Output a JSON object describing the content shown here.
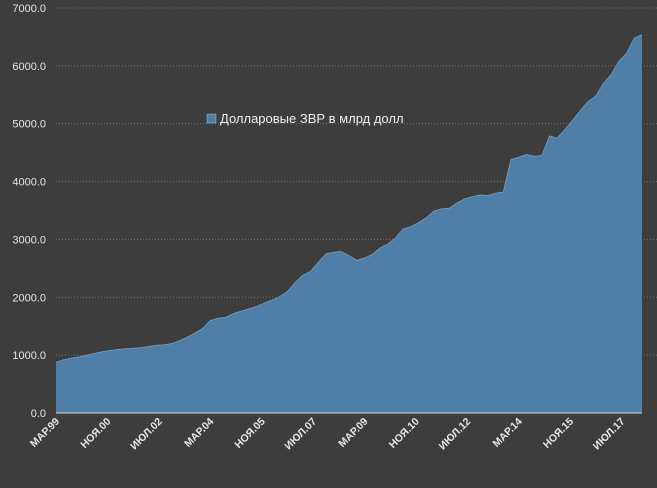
{
  "chart_data": {
    "type": "area",
    "title": "",
    "xlabel": "",
    "ylabel": "",
    "ylim": [
      0,
      7000
    ],
    "y_ticks": [
      "0.0",
      "1000.0",
      "2000.0",
      "3000.0",
      "4000.0",
      "5000.0",
      "6000.0",
      "7000.0"
    ],
    "x_tick_labels": [
      "МАР.99",
      "НОЯ.00",
      "ИЮЛ.02",
      "МАР.04",
      "НОЯ.05",
      "ИЮЛ.07",
      "МАР.09",
      "НОЯ.10",
      "ИЮЛ.12",
      "МАР.14",
      "НОЯ.15",
      "ИЮЛ.17"
    ],
    "grid": "horizontal dotted",
    "legend_position": "top-center",
    "colors": {
      "background": "#3d3d3d",
      "area_fill": "#4f7ea6",
      "area_line": "#9cc3e0",
      "grid": "#707070",
      "text": "#e6e6e6"
    },
    "series": [
      {
        "name": "Долларовые ЗВР в млрд долл",
        "x": [
          "1999-03",
          "1999-06",
          "1999-09",
          "1999-12",
          "2000-03",
          "2000-06",
          "2000-09",
          "2000-12",
          "2001-03",
          "2001-06",
          "2001-09",
          "2001-12",
          "2002-03",
          "2002-06",
          "2002-09",
          "2002-12",
          "2003-03",
          "2003-06",
          "2003-09",
          "2003-12",
          "2004-03",
          "2004-06",
          "2004-09",
          "2004-12",
          "2005-03",
          "2005-06",
          "2005-09",
          "2005-12",
          "2006-03",
          "2006-06",
          "2006-09",
          "2006-12",
          "2007-03",
          "2007-06",
          "2007-09",
          "2007-12",
          "2008-03",
          "2008-06",
          "2008-09",
          "2008-12",
          "2009-03",
          "2009-06",
          "2009-09",
          "2009-12",
          "2010-03",
          "2010-06",
          "2010-09",
          "2010-12",
          "2011-03",
          "2011-06",
          "2011-09",
          "2011-12",
          "2012-03",
          "2012-06",
          "2012-09",
          "2012-12",
          "2013-03",
          "2013-06",
          "2013-09",
          "2013-12",
          "2014-03",
          "2014-06",
          "2014-09",
          "2014-12",
          "2015-03",
          "2015-06",
          "2015-09",
          "2015-12",
          "2016-03",
          "2016-06",
          "2016-09",
          "2016-12",
          "2017-03",
          "2017-06",
          "2017-09",
          "2017-12",
          "2018-03"
        ],
        "values": [
          880,
          920,
          950,
          970,
          1000,
          1030,
          1060,
          1080,
          1100,
          1110,
          1120,
          1130,
          1150,
          1170,
          1180,
          1200,
          1250,
          1310,
          1380,
          1460,
          1600,
          1640,
          1650,
          1720,
          1760,
          1800,
          1840,
          1900,
          1950,
          2010,
          2100,
          2250,
          2380,
          2450,
          2600,
          2750,
          2780,
          2790,
          2720,
          2640,
          2680,
          2740,
          2850,
          2920,
          3020,
          3180,
          3220,
          3290,
          3370,
          3490,
          3530,
          3540,
          3630,
          3700,
          3740,
          3770,
          3760,
          3800,
          3820,
          4380,
          4420,
          4470,
          4440,
          4450,
          4790,
          4750,
          4900,
          5060,
          5230,
          5380,
          5480,
          5700,
          5850,
          6080,
          6220,
          6480,
          6540
        ]
      }
    ]
  }
}
